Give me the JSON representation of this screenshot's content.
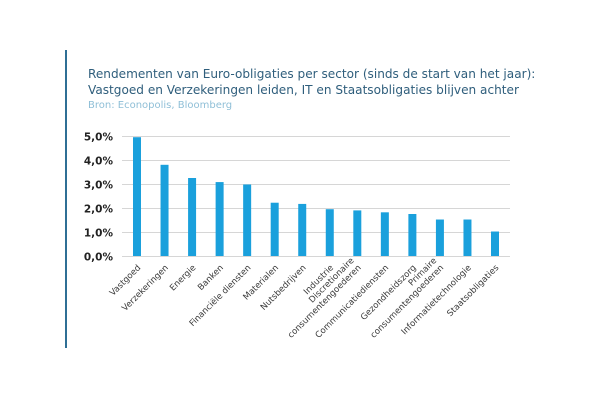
{
  "colors": {
    "accent": "#2f6f95",
    "title": "#2f5e7c",
    "source": "#8fbfd7",
    "bar": "#1aa0dc",
    "grid": "#d6d6d6",
    "axis_text": "#222222",
    "tick_text": "#3a3a3a"
  },
  "header": {
    "title_line1": "Rendementen van Euro-obligaties per sector (sinds de start van het jaar):",
    "title_line2": "Vastgoed en Verzekeringen leiden, IT en Staatsobligaties blijven achter",
    "source": "Bron: Econopolis, Bloomberg"
  },
  "chart_data": {
    "type": "bar",
    "title": "Rendementen van Euro-obligaties per sector (sinds de start van het jaar): Vastgoed en Verzekeringen leiden, IT en Staatsobligaties blijven achter",
    "subtitle": "Bron: Econopolis, Bloomberg",
    "xlabel": "",
    "ylabel": "",
    "categories": [
      "Vastgoed",
      "Verzekeringen",
      "Energie",
      "Banken",
      "Financiële diensten",
      "Materialen",
      "Nutsbedrijven",
      "Industrie",
      [
        "Discretionaire",
        "consumentengoederen"
      ],
      "Communicatiediensten",
      "Gezondheidszorg",
      [
        "Primaire",
        "consumentengoederen"
      ],
      "Informatietechnologie",
      "Staatsobligaties"
    ],
    "values": [
      4.95,
      3.8,
      3.25,
      3.08,
      2.98,
      2.22,
      2.17,
      1.95,
      1.9,
      1.82,
      1.75,
      1.52,
      1.52,
      1.02
    ],
    "ylim": [
      0,
      5
    ],
    "yticks": [
      0,
      1,
      2,
      3,
      4,
      5
    ],
    "ytick_labels": [
      "0,0%",
      "1,0%",
      "2,0%",
      "3,0%",
      "4,0%",
      "5,0%"
    ],
    "grid": true,
    "legend": "none"
  }
}
